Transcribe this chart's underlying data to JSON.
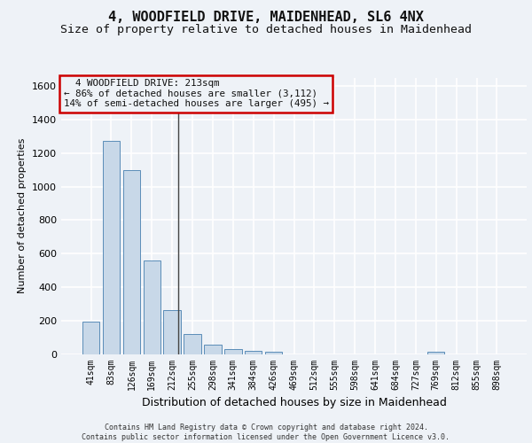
{
  "title1": "4, WOODFIELD DRIVE, MAIDENHEAD, SL6 4NX",
  "title2": "Size of property relative to detached houses in Maidenhead",
  "xlabel": "Distribution of detached houses by size in Maidenhead",
  "ylabel": "Number of detached properties",
  "categories": [
    "41sqm",
    "83sqm",
    "126sqm",
    "169sqm",
    "212sqm",
    "255sqm",
    "298sqm",
    "341sqm",
    "384sqm",
    "426sqm",
    "469sqm",
    "512sqm",
    "555sqm",
    "598sqm",
    "641sqm",
    "684sqm",
    "727sqm",
    "769sqm",
    "812sqm",
    "855sqm",
    "898sqm"
  ],
  "values": [
    195,
    1270,
    1100,
    560,
    265,
    120,
    58,
    30,
    20,
    15,
    0,
    0,
    0,
    0,
    0,
    0,
    0,
    18,
    0,
    0,
    0
  ],
  "bar_color": "#c8d8e8",
  "bar_edge_color": "#5b8db8",
  "vline_x": 4.3,
  "vline_color": "#444444",
  "annotation_text": "  4 WOODFIELD DRIVE: 213sqm  \n← 86% of detached houses are smaller (3,112)\n14% of semi-detached houses are larger (495) →",
  "annotation_box_color": "#cc0000",
  "ylim": [
    0,
    1650
  ],
  "yticks": [
    0,
    200,
    400,
    600,
    800,
    1000,
    1200,
    1400,
    1600
  ],
  "footer1": "Contains HM Land Registry data © Crown copyright and database right 2024.",
  "footer2": "Contains public sector information licensed under the Open Government Licence v3.0.",
  "bg_color": "#eef2f7",
  "grid_color": "#ffffff",
  "title1_fontsize": 11,
  "title2_fontsize": 9.5,
  "ann_fontsize": 7.8,
  "ylabel_fontsize": 8,
  "xlabel_fontsize": 9,
  "ytick_fontsize": 8,
  "xtick_fontsize": 7
}
